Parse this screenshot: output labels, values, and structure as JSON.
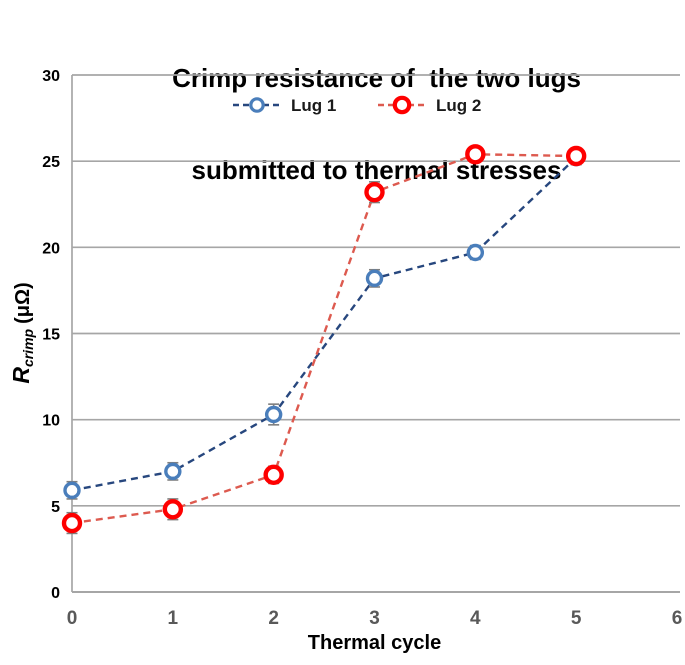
{
  "title": {
    "line1": "Crimp resistance of  the two lugs",
    "line2": "submitted to thermal stresses"
  },
  "chart_data": {
    "type": "line",
    "title": "Crimp resistance of the two lugs submitted to thermal stresses",
    "xlabel": "Thermal cycle",
    "ylabel_main": "R",
    "ylabel_sub": "crimp",
    "ylabel_units": "(μΩ)",
    "x": [
      0,
      1,
      2,
      3,
      4,
      5
    ],
    "series": [
      {
        "name": "Lug 1",
        "values": [
          5.9,
          7.0,
          10.3,
          18.2,
          19.7,
          25.2
        ],
        "errors": [
          0.5,
          0.5,
          0.6,
          0.5,
          0.4,
          0.4
        ],
        "line_color": "#27477e",
        "marker_color": "#4a7ebb",
        "marker_radius": 7,
        "marker_stroke": 3.4
      },
      {
        "name": "Lug 2",
        "values": [
          4.0,
          4.8,
          6.8,
          23.2,
          25.4,
          25.3
        ],
        "errors": [
          0.6,
          0.6,
          0.5,
          0.6,
          0.3,
          0.3
        ],
        "line_color": "#dd5a4f",
        "marker_color": "#fe0000",
        "marker_radius": 8,
        "marker_stroke": 4.4
      }
    ],
    "x_ticks": [
      0,
      1,
      2,
      3,
      4,
      5,
      6
    ],
    "y_ticks": [
      0,
      5,
      10,
      15,
      20,
      25,
      30
    ],
    "xlim": [
      0,
      6
    ],
    "ylim": [
      0,
      30
    ],
    "grid": "horizontal",
    "legend_position": "top-inside",
    "legend": [
      "Lug 1",
      "Lug 2"
    ],
    "colors": {
      "grid": "#a6a6a6",
      "axis": "#a6a6a6",
      "x_tick_label": "#595959",
      "y_tick_label": "#000000",
      "error_bar": "#7f7f7f",
      "legend_text": "#1a1a1a"
    }
  }
}
